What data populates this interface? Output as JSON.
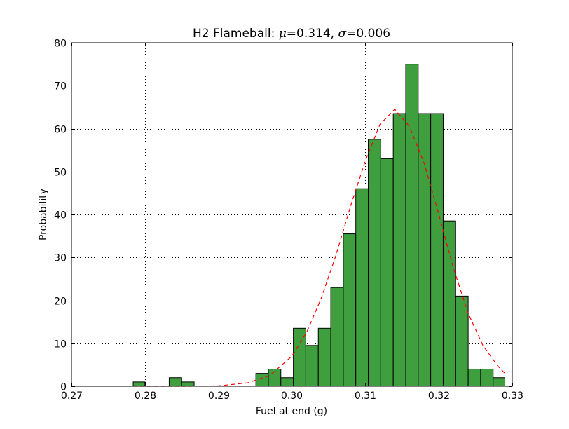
{
  "chart_data": {
    "type": "bar",
    "title": {
      "prefix": "H2 Flameball: ",
      "mu_symbol": "μ",
      "mu_value": "=0.314, ",
      "sigma_symbol": "σ",
      "sigma_value": "=0.006"
    },
    "xlabel": "Fuel at end (g)",
    "ylabel": "Probability",
    "xlim": [
      0.27,
      0.33
    ],
    "ylim": [
      0,
      80
    ],
    "x_ticks": [
      "0.27",
      "0.28",
      "0.29",
      "0.30",
      "0.31",
      "0.32",
      "0.33"
    ],
    "y_ticks": [
      "0",
      "10",
      "20",
      "30",
      "40",
      "50",
      "60",
      "70",
      "80"
    ],
    "grid": true,
    "bar_color": "#3f9f3f",
    "bar_edge_color": "#000000",
    "curve_color": "#ff0000",
    "bins": [
      {
        "x0": 0.2784,
        "x1": 0.28,
        "value": 1.0
      },
      {
        "x0": 0.2833,
        "x1": 0.285,
        "value": 2.0
      },
      {
        "x0": 0.285,
        "x1": 0.2867,
        "value": 1.0
      },
      {
        "x0": 0.2951,
        "x1": 0.2968,
        "value": 3.0
      },
      {
        "x0": 0.2968,
        "x1": 0.2985,
        "value": 4.0
      },
      {
        "x0": 0.2985,
        "x1": 0.3002,
        "value": 2.0
      },
      {
        "x0": 0.3002,
        "x1": 0.3019,
        "value": 13.5
      },
      {
        "x0": 0.3019,
        "x1": 0.3036,
        "value": 9.5
      },
      {
        "x0": 0.3036,
        "x1": 0.3053,
        "value": 13.5
      },
      {
        "x0": 0.3053,
        "x1": 0.307,
        "value": 23.0
      },
      {
        "x0": 0.307,
        "x1": 0.3087,
        "value": 35.5
      },
      {
        "x0": 0.3087,
        "x1": 0.3104,
        "value": 46.0
      },
      {
        "x0": 0.3104,
        "x1": 0.3121,
        "value": 57.5
      },
      {
        "x0": 0.3121,
        "x1": 0.3138,
        "value": 53.0
      },
      {
        "x0": 0.3138,
        "x1": 0.3155,
        "value": 63.5
      },
      {
        "x0": 0.3155,
        "x1": 0.3172,
        "value": 75.0
      },
      {
        "x0": 0.3172,
        "x1": 0.3189,
        "value": 63.5
      },
      {
        "x0": 0.3189,
        "x1": 0.3206,
        "value": 63.5
      },
      {
        "x0": 0.3206,
        "x1": 0.3223,
        "value": 38.5
      },
      {
        "x0": 0.3223,
        "x1": 0.324,
        "value": 21.0
      },
      {
        "x0": 0.324,
        "x1": 0.3257,
        "value": 4.0
      },
      {
        "x0": 0.3257,
        "x1": 0.3274,
        "value": 4.0
      },
      {
        "x0": 0.3274,
        "x1": 0.329,
        "value": 2.0
      }
    ],
    "curve": {
      "style": "dashed",
      "x": [
        0.2784,
        0.282,
        0.286,
        0.29,
        0.294,
        0.297,
        0.3,
        0.302,
        0.304,
        0.306,
        0.308,
        0.31,
        0.312,
        0.314,
        0.316,
        0.318,
        0.32,
        0.322,
        0.324,
        0.326,
        0.328,
        0.329
      ],
      "y": [
        0.0,
        0.0,
        0.0,
        0.1,
        0.8,
        2.5,
        7.0,
        12.5,
        20.5,
        30.5,
        42.0,
        52.5,
        61.0,
        64.5,
        60.5,
        52.0,
        40.0,
        27.5,
        17.0,
        9.5,
        4.8,
        3.0
      ]
    }
  }
}
